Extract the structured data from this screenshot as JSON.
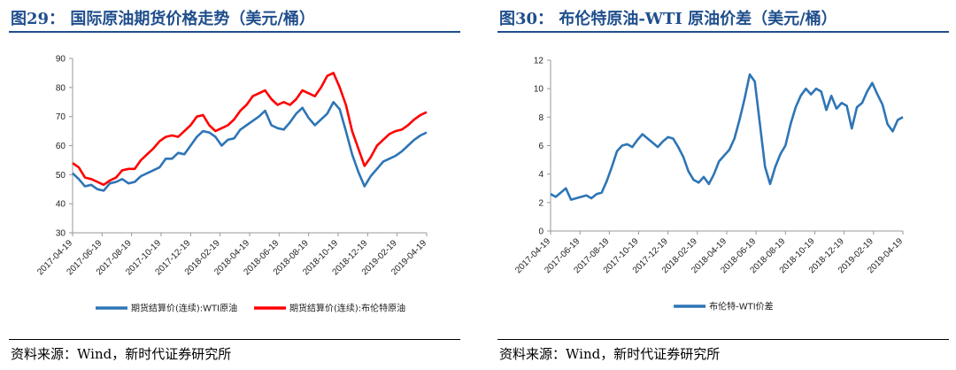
{
  "left": {
    "title": "图29：  国际原油期货价格走势（美元/桶）",
    "source": "资料来源：Wind，新时代证券研究所",
    "chart_data": {
      "type": "line",
      "x_ticks": [
        "2017-04-19",
        "2017-06-19",
        "2017-08-19",
        "2017-10-19",
        "2017-12-19",
        "2018-02-19",
        "2018-04-19",
        "2018-06-19",
        "2018-08-19",
        "2018-10-19",
        "2018-12-19",
        "2019-02-19",
        "2019-04-19"
      ],
      "y_ticks": [
        30,
        40,
        50,
        60,
        70,
        80,
        90
      ],
      "ylim": [
        30,
        90
      ],
      "legend_position": "bottom",
      "series": [
        {
          "name": "期货结算价(连续):WTI原油",
          "color": "#2e75b6",
          "values": [
            50.5,
            48.5,
            46,
            46.5,
            45,
            44.5,
            47,
            47.5,
            48.5,
            47,
            47.5,
            49.5,
            50.5,
            51.5,
            52.5,
            55.5,
            55.5,
            57.5,
            57,
            60,
            63,
            65,
            64.5,
            63,
            60,
            62,
            62.5,
            65.5,
            67,
            68.5,
            70,
            72,
            67,
            66,
            65.5,
            68,
            71,
            73,
            69.5,
            67,
            69,
            71,
            75,
            72.5,
            65,
            57,
            51,
            46,
            49.5,
            52,
            54.5,
            55.5,
            56.5,
            58,
            60,
            62,
            63.5,
            64.5
          ]
        },
        {
          "name": "期货结算价(连续):布伦特原油",
          "color": "#ff0000",
          "values": [
            54,
            52.5,
            49,
            48.5,
            47.5,
            46.5,
            48,
            49,
            51.5,
            52,
            52,
            55,
            57,
            59,
            61.5,
            63,
            63.5,
            63,
            65,
            67,
            70,
            70.5,
            67,
            65,
            66,
            67,
            69,
            72,
            74,
            77,
            78,
            79,
            76,
            74,
            75,
            74,
            76,
            79,
            78,
            77,
            80,
            84,
            85,
            80,
            74,
            65,
            59,
            53,
            56,
            60,
            62,
            64,
            65,
            65.5,
            67,
            69,
            70.5,
            71.5
          ]
        }
      ]
    }
  },
  "right": {
    "title": "图30：  布伦特原油-WTI 原油价差（美元/桶）",
    "source": "资料来源：Wind，新时代证券研究所",
    "chart_data": {
      "type": "line",
      "x_ticks": [
        "2017-04-19",
        "2017-06-19",
        "2017-08-19",
        "2017-10-19",
        "2017-12-19",
        "2018-02-19",
        "2018-04-19",
        "2018-06-19",
        "2018-08-19",
        "2018-10-19",
        "2018-12-19",
        "2019-02-19",
        "2019-04-19"
      ],
      "y_ticks": [
        0,
        2,
        4,
        6,
        8,
        10,
        12
      ],
      "ylim": [
        0,
        12
      ],
      "legend_position": "bottom",
      "series": [
        {
          "name": "布伦特-WTI价差",
          "color": "#2e75b6",
          "values": [
            2.6,
            2.4,
            2.7,
            3,
            2.2,
            2.3,
            2.4,
            2.5,
            2.3,
            2.6,
            2.7,
            3.5,
            4.5,
            5.6,
            6,
            6.1,
            5.9,
            6.4,
            6.8,
            6.5,
            6.2,
            5.9,
            6.3,
            6.6,
            6.5,
            5.9,
            5.2,
            4.2,
            3.6,
            3.4,
            3.8,
            3.3,
            4,
            4.9,
            5.3,
            5.7,
            6.5,
            7.8,
            9.3,
            11,
            10.5,
            7.5,
            4.5,
            3.3,
            4.5,
            5.4,
            6,
            7.5,
            8.7,
            9.5,
            10,
            9.6,
            10,
            9.8,
            8.5,
            9.5,
            8.6,
            9,
            8.8,
            7.2,
            8.7,
            9,
            9.8,
            10.4,
            9.6,
            8.9,
            7.5,
            7,
            7.8,
            8
          ]
        }
      ]
    }
  }
}
